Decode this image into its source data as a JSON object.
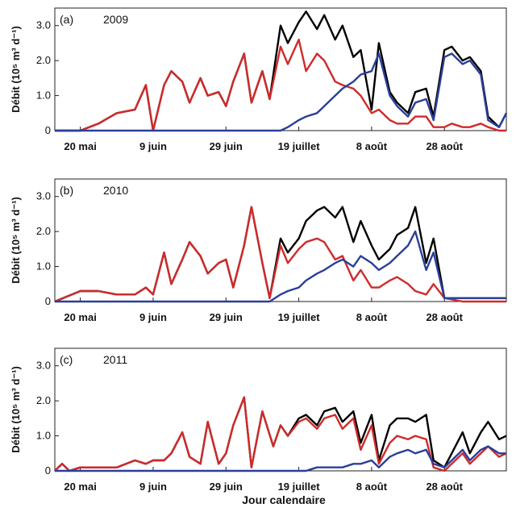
{
  "chart_data": {
    "type": "line",
    "xlabel": "Jour calendaire",
    "ylabel": "Débit (10⁵ m³ d⁻¹)",
    "ylim": [
      0,
      3.5
    ],
    "yticks": [
      "0",
      "1.0",
      "2.0",
      "3.0"
    ],
    "xticks": [
      "20 mai",
      "9 juin",
      "29 juin",
      "19 juillet",
      "8 août",
      "28 août"
    ],
    "xtick_days": [
      140,
      160,
      180,
      200,
      220,
      240
    ],
    "xlim": [
      133,
      257
    ],
    "series_colors": [
      "#000000",
      "#d02a2a",
      "#2a3f9a"
    ],
    "panels": [
      {
        "label": "(a)",
        "year": "2009",
        "series": [
          {
            "x": [
              133,
              140,
              145,
              150,
              155,
              158,
              160,
              163,
              165,
              168,
              170,
              173,
              175,
              178,
              180,
              182,
              185,
              187,
              190,
              192,
              195,
              197,
              200,
              202,
              205,
              207,
              210,
              212,
              215,
              217,
              220,
              222,
              225,
              227,
              230,
              232,
              235,
              237,
              240,
              242,
              245,
              247,
              250,
              252,
              255,
              257
            ],
            "values": [
              0,
              0,
              0.2,
              0.5,
              0.6,
              1.3,
              0,
              1.3,
              1.7,
              1.4,
              0.8,
              1.5,
              1.0,
              1.1,
              0.7,
              1.4,
              2.2,
              0.8,
              1.7,
              0.9,
              3.0,
              2.5,
              3.1,
              3.4,
              2.9,
              3.3,
              2.6,
              3.0,
              2.1,
              2.3,
              0.6,
              2.5,
              1.1,
              0.8,
              0.5,
              1.1,
              1.2,
              0.4,
              2.3,
              2.4,
              2.0,
              2.1,
              1.7,
              0.4,
              0.1,
              0.5
            ]
          },
          {
            "x": [
              133,
              140,
              145,
              150,
              155,
              158,
              160,
              163,
              165,
              168,
              170,
              173,
              175,
              178,
              180,
              182,
              185,
              187,
              190,
              192,
              195,
              197,
              200,
              202,
              205,
              207,
              210,
              212,
              215,
              217,
              220,
              222,
              225,
              227,
              230,
              232,
              235,
              237,
              240,
              242,
              245,
              247,
              250,
              252,
              255,
              257
            ],
            "values": [
              0,
              0,
              0.2,
              0.5,
              0.6,
              1.3,
              0,
              1.3,
              1.7,
              1.4,
              0.8,
              1.5,
              1.0,
              1.1,
              0.7,
              1.4,
              2.2,
              0.8,
              1.7,
              0.9,
              2.4,
              1.9,
              2.6,
              1.7,
              2.2,
              2.0,
              1.4,
              1.3,
              1.2,
              1.0,
              0.5,
              0.6,
              0.3,
              0.2,
              0.2,
              0.4,
              0.4,
              0.1,
              0.1,
              0.2,
              0.1,
              0.1,
              0.2,
              0.1,
              0,
              0
            ]
          },
          {
            "x": [
              133,
              140,
              145,
              150,
              155,
              158,
              160,
              163,
              165,
              168,
              170,
              173,
              175,
              178,
              180,
              182,
              185,
              187,
              190,
              192,
              195,
              197,
              200,
              202,
              205,
              207,
              210,
              212,
              215,
              217,
              220,
              222,
              225,
              227,
              230,
              232,
              235,
              237,
              240,
              242,
              245,
              247,
              250,
              252,
              255,
              257
            ],
            "values": [
              0,
              0,
              0,
              0,
              0,
              0,
              0,
              0,
              0,
              0,
              0,
              0,
              0,
              0,
              0,
              0,
              0,
              0,
              0,
              0,
              0,
              0.1,
              0.3,
              0.4,
              0.5,
              0.7,
              1.0,
              1.2,
              1.4,
              1.6,
              1.7,
              2.2,
              1.0,
              0.7,
              0.4,
              0.8,
              0.9,
              0.3,
              2.1,
              2.2,
              1.9,
              2.0,
              1.6,
              0.3,
              0.1,
              0.5
            ]
          }
        ]
      },
      {
        "label": "(b)",
        "year": "2010",
        "series": [
          {
            "x": [
              133,
              140,
              145,
              150,
              155,
              158,
              160,
              163,
              165,
              168,
              170,
              173,
              175,
              178,
              180,
              182,
              185,
              187,
              190,
              192,
              195,
              197,
              200,
              202,
              205,
              207,
              210,
              212,
              215,
              217,
              220,
              222,
              225,
              227,
              230,
              232,
              235,
              237,
              240,
              245,
              250,
              257
            ],
            "values": [
              0,
              0.3,
              0.3,
              0.2,
              0.2,
              0.4,
              0.2,
              1.4,
              0.5,
              1.2,
              1.7,
              1.3,
              0.8,
              1.1,
              1.2,
              0.4,
              1.6,
              2.7,
              1.1,
              0.1,
              1.8,
              1.4,
              1.8,
              2.3,
              2.6,
              2.7,
              2.4,
              2.7,
              1.7,
              2.3,
              1.6,
              1.2,
              1.5,
              1.9,
              2.1,
              2.7,
              1.1,
              1.8,
              0.1,
              0.1,
              0.1,
              0.1
            ]
          },
          {
            "x": [
              133,
              140,
              145,
              150,
              155,
              158,
              160,
              163,
              165,
              168,
              170,
              173,
              175,
              178,
              180,
              182,
              185,
              187,
              190,
              192,
              195,
              197,
              200,
              202,
              205,
              207,
              210,
              212,
              215,
              217,
              220,
              222,
              225,
              227,
              230,
              232,
              235,
              237,
              240,
              245,
              250,
              257
            ],
            "values": [
              0,
              0.3,
              0.3,
              0.2,
              0.2,
              0.4,
              0.2,
              1.4,
              0.5,
              1.2,
              1.7,
              1.3,
              0.8,
              1.1,
              1.2,
              0.4,
              1.6,
              2.7,
              1.1,
              0.1,
              1.6,
              1.1,
              1.5,
              1.7,
              1.8,
              1.7,
              1.2,
              1.3,
              0.6,
              0.9,
              0.4,
              0.4,
              0.6,
              0.7,
              0.5,
              0.3,
              0.2,
              0.5,
              0.1,
              0,
              0,
              0
            ]
          },
          {
            "x": [
              133,
              140,
              145,
              150,
              155,
              158,
              160,
              163,
              165,
              168,
              170,
              173,
              175,
              178,
              180,
              182,
              185,
              187,
              190,
              192,
              195,
              197,
              200,
              202,
              205,
              207,
              210,
              212,
              215,
              217,
              220,
              222,
              225,
              227,
              230,
              232,
              235,
              237,
              240,
              245,
              250,
              257
            ],
            "values": [
              0,
              0,
              0,
              0,
              0,
              0,
              0,
              0,
              0,
              0,
              0,
              0,
              0,
              0,
              0,
              0,
              0,
              0,
              0,
              0,
              0.2,
              0.3,
              0.4,
              0.6,
              0.8,
              0.9,
              1.1,
              1.2,
              1.0,
              1.3,
              1.1,
              0.9,
              1.1,
              1.3,
              1.6,
              2.0,
              0.9,
              1.4,
              0.1,
              0.1,
              0.1,
              0.1
            ]
          }
        ]
      },
      {
        "label": "(c)",
        "year": "2011",
        "series": [
          {
            "x": [
              133,
              135,
              137,
              140,
              145,
              150,
              155,
              158,
              160,
              163,
              165,
              168,
              170,
              173,
              175,
              178,
              180,
              182,
              185,
              187,
              190,
              193,
              195,
              197,
              200,
              202,
              205,
              207,
              210,
              212,
              215,
              217,
              220,
              222,
              225,
              227,
              230,
              232,
              235,
              237,
              240,
              242,
              245,
              247,
              250,
              252,
              255,
              257
            ],
            "values": [
              0,
              0.2,
              0,
              0.1,
              0.1,
              0.1,
              0.3,
              0.2,
              0.3,
              0.3,
              0.5,
              1.1,
              0.4,
              0.2,
              1.4,
              0.2,
              0.5,
              1.3,
              2.1,
              0.1,
              1.7,
              0.7,
              1.3,
              1.0,
              1.5,
              1.6,
              1.3,
              1.7,
              1.8,
              1.4,
              1.7,
              0.8,
              1.6,
              0.3,
              1.3,
              1.5,
              1.5,
              1.4,
              1.6,
              0.3,
              0.1,
              0.5,
              1.1,
              0.5,
              1.1,
              1.4,
              0.9,
              1.0
            ]
          },
          {
            "x": [
              133,
              135,
              137,
              140,
              145,
              150,
              155,
              158,
              160,
              163,
              165,
              168,
              170,
              173,
              175,
              178,
              180,
              182,
              185,
              187,
              190,
              193,
              195,
              197,
              200,
              202,
              205,
              207,
              210,
              212,
              215,
              217,
              220,
              222,
              225,
              227,
              230,
              232,
              235,
              237,
              240,
              242,
              245,
              247,
              250,
              252,
              255,
              257
            ],
            "values": [
              0,
              0.2,
              0,
              0.1,
              0.1,
              0.1,
              0.3,
              0.2,
              0.3,
              0.3,
              0.5,
              1.1,
              0.4,
              0.2,
              1.4,
              0.2,
              0.5,
              1.3,
              2.1,
              0.1,
              1.7,
              0.7,
              1.3,
              1.0,
              1.4,
              1.5,
              1.2,
              1.5,
              1.6,
              1.2,
              1.5,
              0.6,
              1.3,
              0.2,
              0.8,
              1.0,
              0.9,
              1.0,
              0.9,
              0.1,
              0,
              0.2,
              0.5,
              0.2,
              0.5,
              0.7,
              0.4,
              0.5
            ]
          },
          {
            "x": [
              133,
              135,
              137,
              140,
              145,
              150,
              155,
              158,
              160,
              163,
              165,
              168,
              170,
              173,
              175,
              178,
              180,
              182,
              185,
              187,
              190,
              193,
              195,
              197,
              200,
              202,
              205,
              207,
              210,
              212,
              215,
              217,
              220,
              222,
              225,
              227,
              230,
              232,
              235,
              237,
              240,
              242,
              245,
              247,
              250,
              252,
              255,
              257
            ],
            "values": [
              0,
              0,
              0,
              0,
              0,
              0,
              0,
              0,
              0,
              0,
              0,
              0,
              0,
              0,
              0,
              0,
              0,
              0,
              0,
              0,
              0,
              0,
              0,
              0,
              0,
              0,
              0.1,
              0.1,
              0.1,
              0.1,
              0.2,
              0.2,
              0.3,
              0.1,
              0.4,
              0.5,
              0.6,
              0.5,
              0.6,
              0.2,
              0.1,
              0.3,
              0.6,
              0.3,
              0.6,
              0.7,
              0.5,
              0.5
            ]
          }
        ]
      }
    ]
  }
}
